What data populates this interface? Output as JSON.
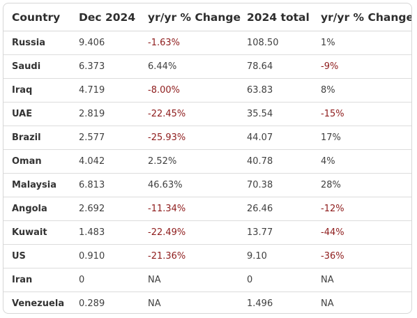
{
  "headers": [
    "Country",
    "Dec 2024",
    "yr/yr % Change",
    "2024 total",
    "yr/yr % Change"
  ],
  "rows": [
    {
      "country": "Russia",
      "dec_2024": "9.406",
      "dec_change": "-1.63%",
      "total_2024": "108.50",
      "total_change": "1%"
    },
    {
      "country": "Saudi",
      "dec_2024": "6.373",
      "dec_change": "6.44%",
      "total_2024": "78.64",
      "total_change": "-9%"
    },
    {
      "country": "Iraq",
      "dec_2024": "4.719",
      "dec_change": "-8.00%",
      "total_2024": "63.83",
      "total_change": "8%"
    },
    {
      "country": "UAE",
      "dec_2024": "2.819",
      "dec_change": "-22.45%",
      "total_2024": "35.54",
      "total_change": "-15%"
    },
    {
      "country": "Brazil",
      "dec_2024": "2.577",
      "dec_change": "-25.93%",
      "total_2024": "44.07",
      "total_change": "17%"
    },
    {
      "country": "Oman",
      "dec_2024": "4.042",
      "dec_change": "2.52%",
      "total_2024": "40.78",
      "total_change": "4%"
    },
    {
      "country": "Malaysia",
      "dec_2024": "6.813",
      "dec_change": "46.63%",
      "total_2024": "70.38",
      "total_change": "28%"
    },
    {
      "country": "Angola",
      "dec_2024": "2.692",
      "dec_change": "-11.34%",
      "total_2024": "26.46",
      "total_change": "-12%"
    },
    {
      "country": "Kuwait",
      "dec_2024": "1.483",
      "dec_change": "-22.49%",
      "total_2024": "13.77",
      "total_change": "-44%"
    },
    {
      "country": "US",
      "dec_2024": "0.910",
      "dec_change": "-21.36%",
      "total_2024": "9.10",
      "total_change": "-36%"
    },
    {
      "country": "Iran",
      "dec_2024": "0",
      "dec_change": "NA",
      "total_2024": "0",
      "total_change": "NA"
    },
    {
      "country": "Venezuela",
      "dec_2024": "0.289",
      "dec_change": "NA",
      "total_2024": "1.496",
      "total_change": "NA"
    }
  ],
  "colors": {
    "negative": "#8e1c1c",
    "text": "#404040",
    "border": "#d6d6d6"
  }
}
